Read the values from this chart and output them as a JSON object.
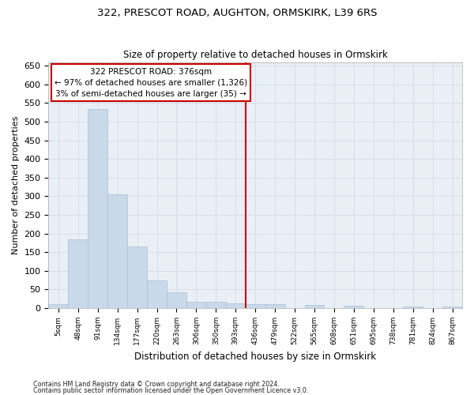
{
  "title1": "322, PRESCOT ROAD, AUGHTON, ORMSKIRK, L39 6RS",
  "title2": "Size of property relative to detached houses in Ormskirk",
  "xlabel": "Distribution of detached houses by size in Ormskirk",
  "ylabel": "Number of detached properties",
  "footnote1": "Contains HM Land Registry data © Crown copyright and database right 2024.",
  "footnote2": "Contains public sector information licensed under the Open Government Licence v3.0.",
  "bar_color": "#c9d9ea",
  "bar_edge_color": "#a8bfd4",
  "grid_color": "#d5dfe8",
  "background_color": "#eaeff5",
  "vline_color": "#cc0000",
  "vline_x": 9.5,
  "annotation_line1": "322 PRESCOT ROAD: 376sqm",
  "annotation_line2": "← 97% of detached houses are smaller (1,326)",
  "annotation_line3": "3% of semi-detached houses are larger (35) →",
  "annotation_box_color": "#ffffff",
  "annotation_edge_color": "#cc0000",
  "bin_labels": [
    "5sqm",
    "48sqm",
    "91sqm",
    "134sqm",
    "177sqm",
    "220sqm",
    "263sqm",
    "306sqm",
    "350sqm",
    "393sqm",
    "436sqm",
    "479sqm",
    "522sqm",
    "565sqm",
    "608sqm",
    "651sqm",
    "695sqm",
    "738sqm",
    "781sqm",
    "824sqm",
    "867sqm"
  ],
  "bar_heights": [
    10,
    185,
    533,
    305,
    165,
    75,
    42,
    18,
    18,
    12,
    10,
    10,
    0,
    8,
    0,
    6,
    0,
    0,
    5,
    0,
    5
  ],
  "ylim": [
    0,
    660
  ],
  "yticks": [
    0,
    50,
    100,
    150,
    200,
    250,
    300,
    350,
    400,
    450,
    500,
    550,
    600,
    650
  ]
}
